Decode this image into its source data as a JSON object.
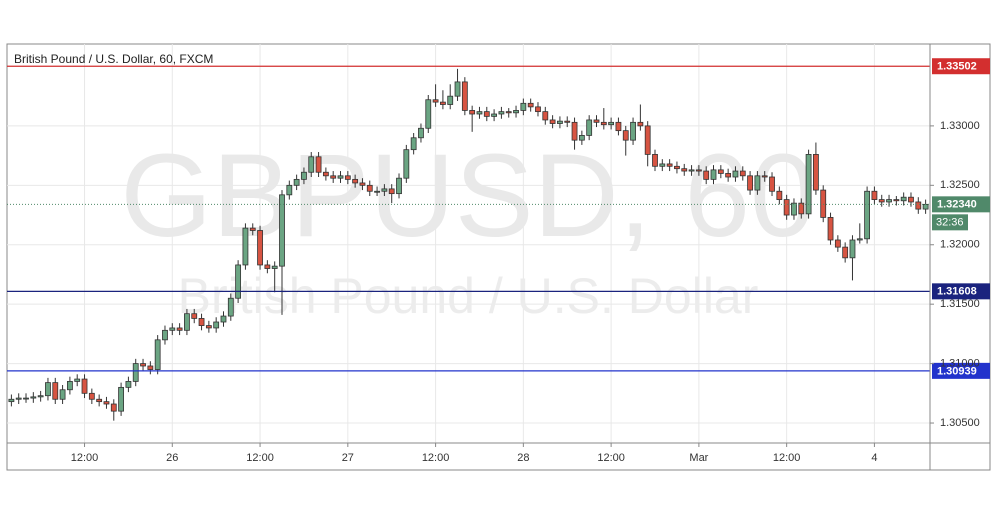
{
  "chart_data": {
    "type": "candlestick",
    "title": "British Pound / U.S. Dollar, 60, FXCM",
    "watermark": "GBPUSD, 60",
    "watermark_subtitle": "British Pound / U.S. Dollar",
    "up_color": "#6ba583",
    "down_color": "#d75442",
    "grid": true,
    "ylim": [
      1.30332,
      1.33689
    ],
    "yticks": [
      {
        "value": 1.305,
        "label": "1.30500"
      },
      {
        "value": 1.31,
        "label": "1.31000"
      },
      {
        "value": 1.315,
        "label": "1.31500"
      },
      {
        "value": 1.32,
        "label": "1.32000"
      },
      {
        "value": 1.325,
        "label": "1.32500"
      },
      {
        "value": 1.33,
        "label": "1.33000"
      }
    ],
    "xlim": [
      0.4,
      126.6
    ],
    "xticks": [
      {
        "value": 11,
        "label": "12:00"
      },
      {
        "value": 23,
        "label": "26"
      },
      {
        "value": 35,
        "label": "12:00"
      },
      {
        "value": 47,
        "label": "27"
      },
      {
        "value": 59,
        "label": "12:00"
      },
      {
        "value": 71,
        "label": "28"
      },
      {
        "value": 83,
        "label": "12:00"
      },
      {
        "value": 95,
        "label": "Mar"
      },
      {
        "value": 107,
        "label": "12:00"
      },
      {
        "value": 119,
        "label": "4"
      }
    ],
    "horizontal_lines": [
      {
        "value": 1.33502,
        "label": "1.33502",
        "color": "#d32f2f"
      },
      {
        "value": 1.31608,
        "label": "1.31608",
        "color": "#1a237e"
      },
      {
        "value": 1.30939,
        "label": "1.30939",
        "color": "#2233cc"
      }
    ],
    "last_price": {
      "value": 1.3234,
      "label": "1.32340",
      "color": "#50896a",
      "countdown": "32:36"
    },
    "ohlc": {
      "open": [
        1.3068,
        1.307,
        1.3071,
        1.3071,
        1.3072,
        1.3073,
        1.3084,
        1.307,
        1.3078,
        1.3085,
        1.3087,
        1.3075,
        1.307,
        1.3068,
        1.3066,
        1.306,
        1.308,
        1.3085,
        1.31,
        1.3098,
        1.3095,
        1.312,
        1.3128,
        1.313,
        1.3128,
        1.3142,
        1.3138,
        1.3132,
        1.313,
        1.3135,
        1.314,
        1.3155,
        1.3183,
        1.3214,
        1.3212,
        1.3183,
        1.318,
        1.3182,
        1.3242,
        1.325,
        1.3255,
        1.3261,
        1.3274,
        1.3261,
        1.3258,
        1.3256,
        1.3258,
        1.3255,
        1.3252,
        1.325,
        1.3245,
        1.3245,
        1.3247,
        1.3243,
        1.3256,
        1.328,
        1.329,
        1.3298,
        1.3322,
        1.332,
        1.3318,
        1.3325,
        1.3337,
        1.3313,
        1.331,
        1.3312,
        1.3308,
        1.331,
        1.3312,
        1.3311,
        1.3313,
        1.3319,
        1.3316,
        1.3312,
        1.3305,
        1.3302,
        1.3304,
        1.3303,
        1.3288,
        1.3292,
        1.3305,
        1.3303,
        1.3301,
        1.3303,
        1.3296,
        1.3288,
        1.3303,
        1.33,
        1.3276,
        1.3266,
        1.3268,
        1.3266,
        1.3264,
        1.3262,
        1.3263,
        1.3262,
        1.3255,
        1.3263,
        1.326,
        1.3257,
        1.3262,
        1.3258,
        1.3246,
        1.3258,
        1.3257,
        1.3245,
        1.3238,
        1.3225,
        1.3235,
        1.3226,
        1.3276,
        1.3246,
        1.3223,
        1.3204,
        1.3198,
        1.3189,
        1.3204,
        1.3205,
        1.3245,
        1.3238,
        1.3236,
        1.3238,
        1.3237,
        1.324,
        1.3236,
        1.323
      ],
      "high": [
        1.3074,
        1.3075,
        1.3075,
        1.3076,
        1.3077,
        1.3088,
        1.3088,
        1.3082,
        1.3089,
        1.3091,
        1.3091,
        1.3079,
        1.3074,
        1.3072,
        1.307,
        1.3084,
        1.3089,
        1.3104,
        1.3104,
        1.3102,
        1.3124,
        1.3132,
        1.3134,
        1.3134,
        1.3146,
        1.3146,
        1.3142,
        1.3136,
        1.3139,
        1.3144,
        1.3159,
        1.3187,
        1.3218,
        1.3218,
        1.3216,
        1.3187,
        1.3186,
        1.3246,
        1.3254,
        1.3259,
        1.3265,
        1.3278,
        1.3278,
        1.3265,
        1.3262,
        1.3262,
        1.3262,
        1.3259,
        1.3256,
        1.3254,
        1.3249,
        1.3251,
        1.3251,
        1.326,
        1.3284,
        1.3294,
        1.3302,
        1.3326,
        1.3335,
        1.333,
        1.3335,
        1.3348,
        1.3341,
        1.3317,
        1.3316,
        1.3316,
        1.3314,
        1.3316,
        1.3315,
        1.3317,
        1.3323,
        1.3323,
        1.332,
        1.3316,
        1.3309,
        1.3308,
        1.3308,
        1.3307,
        1.3296,
        1.3309,
        1.3309,
        1.3315,
        1.3307,
        1.3307,
        1.33,
        1.3307,
        1.3318,
        1.3304,
        1.328,
        1.3272,
        1.3272,
        1.327,
        1.3268,
        1.3267,
        1.3267,
        1.3266,
        1.3267,
        1.3267,
        1.3264,
        1.3266,
        1.3266,
        1.3262,
        1.3262,
        1.3262,
        1.3261,
        1.3249,
        1.3242,
        1.3239,
        1.3239,
        1.328,
        1.3286,
        1.325,
        1.3227,
        1.3208,
        1.3202,
        1.3208,
        1.3218,
        1.3249,
        1.3249,
        1.3242,
        1.3242,
        1.3241,
        1.3244,
        1.3244,
        1.324,
        1.3238
      ],
      "low": [
        1.3064,
        1.3066,
        1.3067,
        1.3067,
        1.3068,
        1.3069,
        1.3066,
        1.3066,
        1.3074,
        1.3081,
        1.3071,
        1.3066,
        1.3064,
        1.3062,
        1.3052,
        1.3056,
        1.3076,
        1.3081,
        1.3094,
        1.3091,
        1.3091,
        1.3116,
        1.3124,
        1.3124,
        1.3124,
        1.3134,
        1.3128,
        1.3126,
        1.3126,
        1.3131,
        1.3136,
        1.3151,
        1.3179,
        1.3208,
        1.3179,
        1.3176,
        1.316,
        1.3141,
        1.3238,
        1.3246,
        1.3251,
        1.3257,
        1.3257,
        1.3254,
        1.3252,
        1.3252,
        1.3251,
        1.3248,
        1.3246,
        1.3241,
        1.3241,
        1.3241,
        1.3235,
        1.3239,
        1.3252,
        1.3276,
        1.3286,
        1.3294,
        1.3316,
        1.3314,
        1.3314,
        1.3321,
        1.3309,
        1.3295,
        1.3306,
        1.3304,
        1.3304,
        1.3306,
        1.3307,
        1.3307,
        1.3309,
        1.3312,
        1.3308,
        1.3301,
        1.3298,
        1.3298,
        1.3299,
        1.328,
        1.3284,
        1.3288,
        1.3299,
        1.3297,
        1.3297,
        1.3292,
        1.3275,
        1.3284,
        1.3296,
        1.3266,
        1.3262,
        1.3262,
        1.3262,
        1.326,
        1.3258,
        1.3258,
        1.3258,
        1.3251,
        1.3251,
        1.3256,
        1.3253,
        1.3253,
        1.3254,
        1.3242,
        1.3242,
        1.3253,
        1.3241,
        1.3234,
        1.3221,
        1.3221,
        1.3222,
        1.3222,
        1.3242,
        1.3219,
        1.32,
        1.3194,
        1.3185,
        1.317,
        1.3201,
        1.3201,
        1.3234,
        1.3232,
        1.3232,
        1.3233,
        1.3233,
        1.3232,
        1.3226,
        1.3226
      ],
      "close": [
        1.307,
        1.3071,
        1.3071,
        1.3072,
        1.3073,
        1.3084,
        1.307,
        1.3078,
        1.3085,
        1.3087,
        1.3075,
        1.307,
        1.3068,
        1.3066,
        1.306,
        1.308,
        1.3085,
        1.31,
        1.3098,
        1.3095,
        1.312,
        1.3128,
        1.313,
        1.3128,
        1.3142,
        1.3138,
        1.3132,
        1.313,
        1.3135,
        1.314,
        1.3155,
        1.3183,
        1.3214,
        1.3212,
        1.3183,
        1.318,
        1.3182,
        1.3242,
        1.325,
        1.3255,
        1.3261,
        1.3274,
        1.3261,
        1.3258,
        1.3256,
        1.3258,
        1.3255,
        1.3252,
        1.325,
        1.3245,
        1.3245,
        1.3247,
        1.3243,
        1.3256,
        1.328,
        1.329,
        1.3298,
        1.3322,
        1.332,
        1.3318,
        1.3325,
        1.3337,
        1.3313,
        1.331,
        1.3312,
        1.3308,
        1.331,
        1.3312,
        1.3311,
        1.3313,
        1.3319,
        1.3316,
        1.3312,
        1.3305,
        1.3302,
        1.3304,
        1.3303,
        1.3288,
        1.3292,
        1.3305,
        1.3303,
        1.3301,
        1.3303,
        1.3296,
        1.3288,
        1.3303,
        1.33,
        1.3276,
        1.3266,
        1.3268,
        1.3266,
        1.3264,
        1.3262,
        1.3263,
        1.3262,
        1.3255,
        1.3263,
        1.326,
        1.3257,
        1.3262,
        1.3258,
        1.3246,
        1.3258,
        1.3257,
        1.3245,
        1.3238,
        1.3225,
        1.3235,
        1.3226,
        1.3276,
        1.3246,
        1.3223,
        1.3204,
        1.3198,
        1.3189,
        1.3204,
        1.3205,
        1.3245,
        1.3238,
        1.3236,
        1.3238,
        1.3237,
        1.324,
        1.3236,
        1.323,
        1.3234
      ]
    }
  }
}
